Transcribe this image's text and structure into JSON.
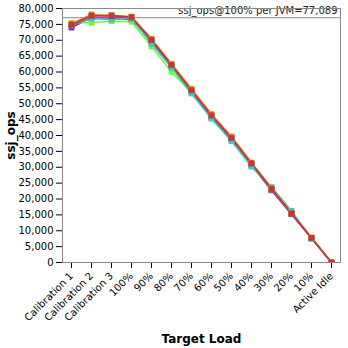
{
  "chart_data": {
    "type": "line",
    "x_label": "Target Load",
    "y_label": "ssj_ops",
    "categories": [
      "Calibration 1",
      "Calibration 2",
      "Calibration 3",
      "100%",
      "90%",
      "80%",
      "70%",
      "60%",
      "50%",
      "40%",
      "30%",
      "20%",
      "10%",
      "Active Idle"
    ],
    "series": [
      {
        "color": "#3333cc",
        "values": [
          74000,
          77200,
          77000,
          76500,
          69800,
          62000,
          53800,
          45800,
          38800,
          30600,
          22800,
          15200,
          7600,
          0
        ]
      },
      {
        "color": "#66ff33",
        "values": [
          75500,
          75500,
          76000,
          75800,
          68000,
          60000,
          53500,
          45500,
          38400,
          30400,
          23000,
          15800,
          7700,
          0
        ]
      },
      {
        "color": "#cc33cc",
        "values": [
          74500,
          77000,
          77300,
          76800,
          69500,
          61800,
          53600,
          45600,
          38700,
          30800,
          22700,
          15300,
          7600,
          0
        ]
      },
      {
        "color": "#33cccc",
        "values": [
          74800,
          76800,
          76500,
          77000,
          68800,
          61300,
          53200,
          45300,
          38200,
          30200,
          23800,
          16300,
          7500,
          0
        ]
      },
      {
        "color": "#ff9933",
        "values": [
          75200,
          78200,
          77800,
          77500,
          70500,
          62600,
          54800,
          46800,
          39800,
          31500,
          23500,
          15700,
          7900,
          0
        ]
      },
      {
        "color": "#996633",
        "values": [
          74600,
          77600,
          77900,
          77300,
          70000,
          62200,
          54200,
          46200,
          39200,
          31100,
          23100,
          15400,
          7700,
          0
        ]
      },
      {
        "color": "#cc3333",
        "values": [
          75000,
          77800,
          77600,
          77200,
          70200,
          62300,
          54300,
          46400,
          39300,
          31300,
          23300,
          15500,
          7800,
          0
        ]
      }
    ],
    "marker": "square",
    "grid": false,
    "ylim": [
      0,
      80000
    ],
    "yticks": [
      0,
      {
        "value": 5000,
        "label": "5,000"
      },
      {
        "value": 10000,
        "label": "10,000"
      },
      {
        "value": 15000,
        "label": "15,000"
      },
      {
        "value": 20000,
        "label": "20,000"
      },
      {
        "value": 25000,
        "label": "25,000"
      },
      {
        "value": 30000,
        "label": "30,000"
      },
      {
        "value": 35000,
        "label": "35,000"
      },
      {
        "value": 40000,
        "label": "40,000"
      },
      {
        "value": 45000,
        "label": "45,000"
      },
      {
        "value": 50000,
        "label": "50,000"
      },
      {
        "value": 55000,
        "label": "55,000"
      },
      {
        "value": 60000,
        "label": "60,000"
      },
      {
        "value": 65000,
        "label": "65,000"
      },
      {
        "value": 70000,
        "label": "70,000"
      },
      {
        "value": 75000,
        "label": "75,000"
      },
      {
        "value": 80000,
        "label": "80,000"
      }
    ],
    "annotations": [
      {
        "text": "ssj_ops@100% per JVM=77,089",
        "value": 77089
      }
    ]
  }
}
